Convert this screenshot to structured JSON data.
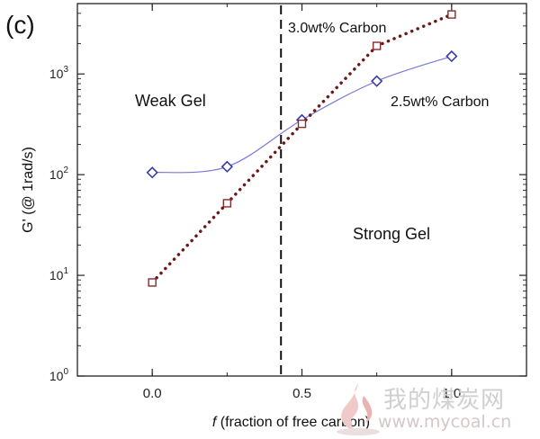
{
  "panel_label": "(c)",
  "chart_data": {
    "type": "scatter",
    "x_range": [
      -0.25,
      1.25
    ],
    "y_range": [
      1,
      5000
    ],
    "y_scale": "log",
    "x_ticks": [
      "0.0",
      "0.5",
      "1.0"
    ],
    "x_tick_values": [
      0.0,
      0.5,
      1.0
    ],
    "y_ticks": [
      {
        "base": "10",
        "exp": "0",
        "value": 1
      },
      {
        "base": "10",
        "exp": "1",
        "value": 10
      },
      {
        "base": "10",
        "exp": "2",
        "value": 100
      },
      {
        "base": "10",
        "exp": "3",
        "value": 1000
      }
    ],
    "xlabel_italic": "f",
    "xlabel_rest": " (fraction of free carbon)",
    "ylabel": "G' (@ 1rad/s)",
    "gelation_threshold_x": 0.43,
    "series": [
      {
        "name": "2.5wt% Carbon",
        "marker": "diamond",
        "color": "#3a3aa8",
        "line_color": "#7a7ad6",
        "line_style": "solid-smooth",
        "x": [
          0.0,
          0.25,
          0.5,
          0.75,
          1.0
        ],
        "y": [
          105,
          120,
          350,
          850,
          1500
        ]
      },
      {
        "name": "3.0wt% Carbon",
        "marker": "square",
        "color": "#8a2a2a",
        "line_color": "#6b1818",
        "line_style": "dotted",
        "x": [
          0.0,
          0.25,
          0.5,
          0.75,
          1.0
        ],
        "y": [
          8.5,
          52,
          320,
          1900,
          3900
        ]
      }
    ],
    "annotations": [
      {
        "id": "weak-gel",
        "text": "Weak Gel"
      },
      {
        "id": "strong-gel",
        "text": "Strong Gel"
      },
      {
        "id": "label-30",
        "text": "3.0wt% Carbon"
      },
      {
        "id": "label-25",
        "text": "2.5wt% Carbon"
      }
    ],
    "grid": false,
    "legend": "none"
  },
  "watermark": {
    "chinese": "我的煤炭网",
    "url": "www.mycoal.cn"
  }
}
